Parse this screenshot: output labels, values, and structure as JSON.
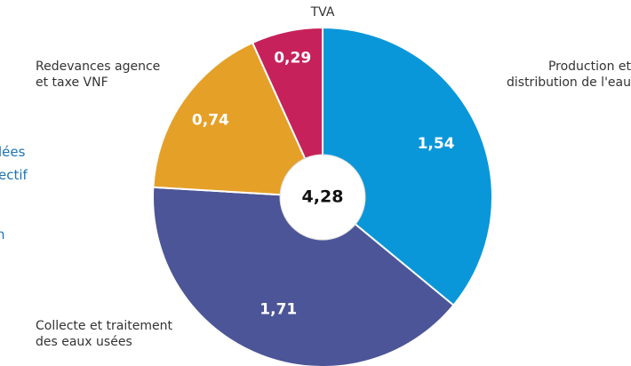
{
  "chart_data": {
    "type": "donut",
    "categories": [
      "Production et\ndistribution de l'eau",
      "Collecte et traitement\ndes eaux usées",
      "Redevances agence\net taxe VNF",
      "TVA"
    ],
    "values": [
      1.54,
      1.71,
      0.74,
      0.29
    ],
    "value_labels": [
      "1,54",
      "1,71",
      "0,74",
      "0,29"
    ],
    "colors": [
      "#0a97d9",
      "#4b5597",
      "#e5a028",
      "#c6215a"
    ],
    "center_label": "4,28",
    "side_text": [
      "lées",
      "ectif",
      "n"
    ]
  }
}
